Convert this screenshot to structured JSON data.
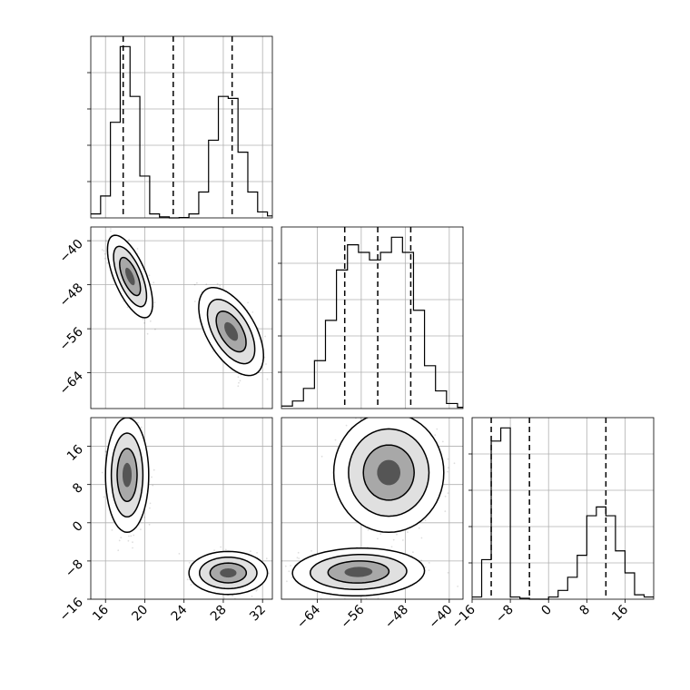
{
  "chart_data": {
    "type": "corner",
    "title": "",
    "grid": true,
    "parameters": [
      {
        "index": 0,
        "label": "",
        "range": [
          14.5,
          33
        ],
        "ticks": [
          16,
          20,
          24,
          28,
          32
        ],
        "tick_labels": [
          "16",
          "20",
          "24",
          "28",
          "32"
        ],
        "quantiles": [
          17.8,
          22.9,
          28.9
        ]
      },
      {
        "index": 1,
        "label": "",
        "range": [
          -70.5,
          -37.5
        ],
        "ticks": [
          -64,
          -56,
          -48,
          -40
        ],
        "tick_labels": [
          "−64",
          "−56",
          "−48",
          "−40"
        ],
        "quantiles": [
          -59,
          -53,
          -47
        ]
      },
      {
        "index": 2,
        "label": "",
        "range": [
          -16,
          22
        ],
        "ticks": [
          -16,
          -8,
          0,
          8,
          16
        ],
        "tick_labels": [
          "−16",
          "−8",
          "0",
          "8",
          "16"
        ],
        "quantiles": [
          -12,
          -4,
          12
        ]
      }
    ],
    "histograms": [
      {
        "param": 0,
        "bin_edges": [
          14.5,
          15.5,
          16.5,
          17.5,
          18.5,
          19.5,
          20.5,
          21.5,
          22.5,
          23.5,
          24.5,
          25.5,
          26.5,
          27.5,
          28.5,
          29.5,
          30.5,
          31.5,
          32.5,
          33
        ],
        "counts": [
          2,
          11,
          48,
          86,
          61,
          21,
          2,
          0.5,
          0,
          0.2,
          2,
          13,
          39,
          61,
          60,
          33,
          13,
          3,
          1
        ]
      },
      {
        "param": 1,
        "bin_edges": [
          -70.5,
          -68.5,
          -66.5,
          -64.5,
          -62.5,
          -60.5,
          -58.5,
          -56.5,
          -54.5,
          -52.5,
          -50.5,
          -48.5,
          -46.5,
          -44.5,
          -42.5,
          -40.5,
          -38.5,
          -37.5
        ],
        "counts": [
          1,
          3,
          8,
          19,
          35,
          55,
          65,
          62,
          59,
          62,
          68,
          62,
          39,
          17,
          7,
          2,
          0.5
        ]
      },
      {
        "param": 2,
        "bin_edges": [
          -16,
          -14,
          -12,
          -10,
          -8,
          -6,
          -4,
          -2,
          0,
          2,
          4,
          6,
          8,
          10,
          12,
          14,
          16,
          18,
          20,
          22
        ],
        "counts": [
          0.5,
          9,
          36,
          39,
          0.5,
          0.2,
          0,
          0,
          0.5,
          2,
          5,
          10,
          19,
          21,
          19,
          11,
          6,
          1,
          0.5
        ]
      }
    ],
    "contour_levels": [
      0.39,
      0.86,
      0.99
    ],
    "pairs": [
      {
        "x_param": 0,
        "y_param": 1,
        "modes": [
          {
            "center": [
              18.5,
              -46.5
            ],
            "axis_x": 2.3,
            "axis_y": 7.5,
            "rho": -0.65
          },
          {
            "center": [
              28.8,
              -56.5
            ],
            "axis_x": 3.3,
            "axis_y": 8,
            "rho": -0.55
          }
        ]
      },
      {
        "x_param": 0,
        "y_param": 2,
        "modes": [
          {
            "center": [
              18.2,
              10
            ],
            "axis_x": 2.2,
            "axis_y": 12,
            "rho": 0
          },
          {
            "center": [
              28.5,
              -10.5
            ],
            "axis_x": 4,
            "axis_y": 4.5,
            "rho": 0
          }
        ]
      },
      {
        "x_param": 1,
        "y_param": 2,
        "modes": [
          {
            "center": [
              -51,
              10.5
            ],
            "axis_x": 10,
            "axis_y": 12.5,
            "rho": 0
          },
          {
            "center": [
              -56.5,
              -10.3
            ],
            "axis_x": 12,
            "axis_y": 5,
            "rho": 0.05
          }
        ]
      }
    ]
  }
}
